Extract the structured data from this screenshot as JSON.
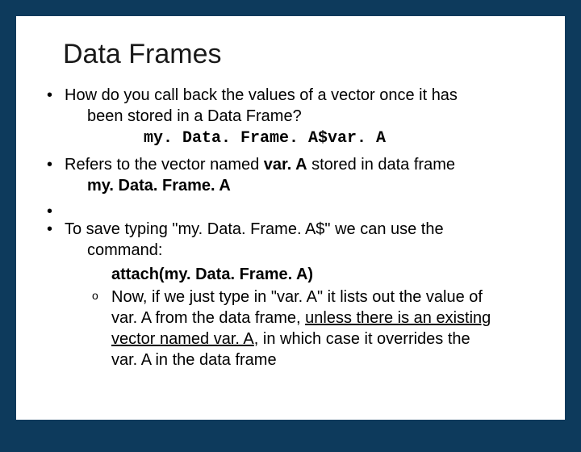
{
  "colors": {
    "slide_border": "#0d3a5c",
    "slide_bg": "#ffffff",
    "title_color": "#1a1a1a",
    "text_color": "#000000"
  },
  "typography": {
    "title_fontsize": 34,
    "body_fontsize": 20,
    "mono_family": "Courier New"
  },
  "title": "Data Frames",
  "bullets": {
    "b1_line1": "How do you call back the values of a vector once it has",
    "b1_line2": "been stored in a Data Frame?",
    "b1_code": "my. Data. Frame. A$var. A",
    "b2_pre": "Refers to the vector named ",
    "b2_bold1": "var. A",
    "b2_mid": " stored in data frame",
    "b2_bold2": "my. Data. Frame. A",
    "b3_line1": "To save typing \"my. Data. Frame. A$\" we can use the",
    "b3_line2": "command:",
    "b3_cmd": "attach(my. Data. Frame. A)",
    "b3_sub_line1": "Now, if we just type in \"var. A\" it lists out the value of",
    "b3_sub_line2a": "var. A from the data frame, ",
    "b3_sub_line2b": "unless there is an existing",
    "b3_sub_line3a": "vector named var. A",
    "b3_sub_line3b": ", in which case it overrides the",
    "b3_sub_line4": "var. A in the data frame"
  }
}
